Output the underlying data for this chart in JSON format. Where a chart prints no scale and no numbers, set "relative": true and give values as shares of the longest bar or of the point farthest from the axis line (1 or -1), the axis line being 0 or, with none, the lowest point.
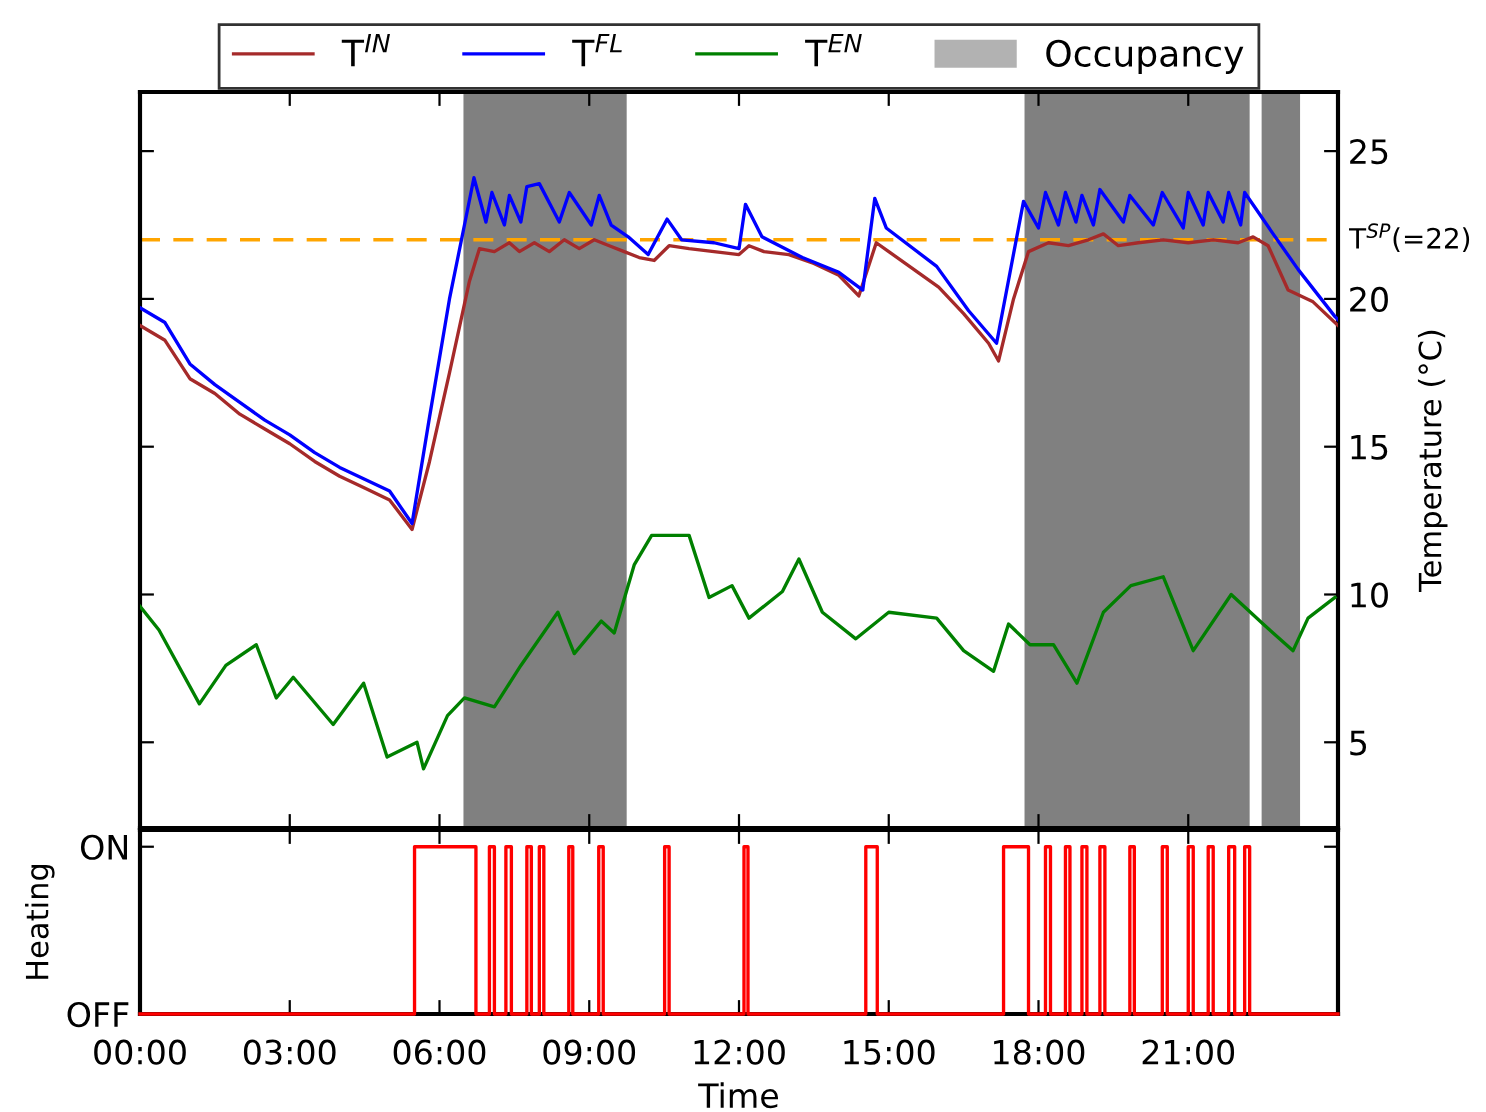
{
  "chart_data": [
    {
      "type": "line",
      "ylabel": "Temperature (°C)",
      "xlim": [
        0,
        24
      ],
      "ylim": [
        2.1,
        27
      ],
      "xticks": [
        {
          "value": 0,
          "label": null
        },
        {
          "value": 3,
          "label": null
        },
        {
          "value": 6,
          "label": null
        },
        {
          "value": 9,
          "label": null
        },
        {
          "value": 12,
          "label": null
        },
        {
          "value": 15,
          "label": null
        },
        {
          "value": 18,
          "label": null
        },
        {
          "value": 21,
          "label": null
        }
      ],
      "yticks": [
        5,
        10,
        15,
        20,
        25
      ],
      "tick_labels": "y",
      "grid": false,
      "legend": "top",
      "marker": "none",
      "line_style": "solid",
      "series": [
        {
          "name": "T$^{IN}$",
          "color": "#a52a2a",
          "x": [
            0,
            0.5,
            1.0,
            1.5,
            2.0,
            2.5,
            3.0,
            3.5,
            4.0,
            4.5,
            5.0,
            5.45,
            5.8,
            6.2,
            6.6,
            6.8,
            7.1,
            7.4,
            7.6,
            7.9,
            8.2,
            8.5,
            8.8,
            9.1,
            9.4,
            9.7,
            10.0,
            10.3,
            10.6,
            11.0,
            11.5,
            12.0,
            12.2,
            12.5,
            13.0,
            13.5,
            14.0,
            14.4,
            14.75,
            15.0,
            15.5,
            16.0,
            16.5,
            17.0,
            17.2,
            17.5,
            17.8,
            18.2,
            18.6,
            19.0,
            19.3,
            19.6,
            20.0,
            20.5,
            21.0,
            21.5,
            22.0,
            22.3,
            22.6,
            23.0,
            23.5,
            24.0
          ],
          "values": [
            19.1,
            18.6,
            17.3,
            16.8,
            16.1,
            15.6,
            15.1,
            14.5,
            14.0,
            13.6,
            13.2,
            12.2,
            14.5,
            17.5,
            20.6,
            21.7,
            21.6,
            21.9,
            21.6,
            21.9,
            21.6,
            22.0,
            21.7,
            22.0,
            21.8,
            21.6,
            21.4,
            21.3,
            21.8,
            21.7,
            21.6,
            21.5,
            21.8,
            21.6,
            21.5,
            21.2,
            20.8,
            20.1,
            21.9,
            21.6,
            21.0,
            20.4,
            19.5,
            18.5,
            17.9,
            20.0,
            21.6,
            21.9,
            21.8,
            22.0,
            22.2,
            21.8,
            21.9,
            22.0,
            21.9,
            22.0,
            21.9,
            22.1,
            21.8,
            20.3,
            19.9,
            19.1
          ]
        },
        {
          "name": "T$^{FL}$",
          "color": "#0000ff",
          "x": [
            0,
            0.5,
            1.0,
            1.5,
            2.0,
            2.5,
            3.0,
            3.5,
            4.0,
            4.5,
            5.0,
            5.45,
            5.8,
            6.2,
            6.5,
            6.69,
            6.93,
            7.05,
            7.3,
            7.4,
            7.63,
            7.75,
            8.0,
            8.4,
            8.6,
            9.04,
            9.2,
            9.44,
            9.78,
            10.18,
            10.56,
            10.85,
            11.5,
            12.0,
            12.13,
            12.46,
            13.27,
            14.0,
            14.48,
            14.72,
            14.95,
            15.96,
            16.6,
            17.16,
            17.7,
            18.0,
            18.14,
            18.4,
            18.54,
            18.75,
            18.87,
            19.1,
            19.23,
            19.7,
            19.83,
            20.3,
            20.48,
            20.9,
            21.0,
            21.3,
            21.4,
            21.7,
            21.81,
            22.05,
            22.13,
            22.7,
            23.2,
            23.94,
            24.0
          ],
          "values": [
            19.7,
            19.2,
            17.8,
            17.1,
            16.5,
            15.9,
            15.4,
            14.8,
            14.3,
            13.9,
            13.5,
            12.4,
            16.0,
            20.0,
            22.5,
            24.1,
            22.6,
            23.6,
            22.5,
            23.5,
            22.6,
            23.8,
            23.9,
            22.6,
            23.6,
            22.5,
            23.5,
            22.5,
            22.1,
            21.5,
            22.7,
            22.0,
            21.9,
            21.7,
            23.2,
            22.1,
            21.4,
            20.9,
            20.3,
            23.4,
            22.4,
            21.1,
            19.6,
            18.5,
            23.3,
            22.4,
            23.6,
            22.5,
            23.6,
            22.6,
            23.5,
            22.5,
            23.7,
            22.6,
            23.5,
            22.5,
            23.6,
            22.4,
            23.6,
            22.5,
            23.6,
            22.6,
            23.6,
            22.5,
            23.6,
            22.2,
            21.0,
            19.4,
            19.3
          ]
        },
        {
          "name": "T$^{EN}$",
          "color": "#008000",
          "x": [
            0,
            0.38,
            1.19,
            1.72,
            2.33,
            2.73,
            3.07,
            3.87,
            4.48,
            4.95,
            5.55,
            5.68,
            6.16,
            6.5,
            7.1,
            7.63,
            8.37,
            8.7,
            9.24,
            9.5,
            9.9,
            10.25,
            11.0,
            11.4,
            11.86,
            12.2,
            12.87,
            13.2,
            13.67,
            14.34,
            15.0,
            15.96,
            16.5,
            17.1,
            17.4,
            17.83,
            18.3,
            18.77,
            19.3,
            19.85,
            20.5,
            21.1,
            21.86,
            22.5,
            23.1,
            23.4,
            23.94
          ],
          "values": [
            9.6,
            8.8,
            6.3,
            7.6,
            8.3,
            6.5,
            7.2,
            5.6,
            7.0,
            4.5,
            5.0,
            4.1,
            5.9,
            6.5,
            6.2,
            7.6,
            9.4,
            8.0,
            9.1,
            8.7,
            11.0,
            12.0,
            12.0,
            9.9,
            10.3,
            9.2,
            10.1,
            11.2,
            9.4,
            8.5,
            9.4,
            9.2,
            8.1,
            7.4,
            9.0,
            8.3,
            8.3,
            7.0,
            9.4,
            10.3,
            10.6,
            8.1,
            10.0,
            9.0,
            8.1,
            9.2,
            9.9
          ]
        }
      ],
      "ref_lines": [
        {
          "axis": "y",
          "value": 22,
          "label": "T$^{SP}$(=22)",
          "color": "#ffa500",
          "line_style": "dashed"
        }
      ],
      "bands": [
        {
          "axis": "x",
          "from": 6.48,
          "to": 9.75,
          "label": "Occupancy",
          "color": "#808080"
        },
        {
          "axis": "x",
          "from": 17.72,
          "to": 22.23,
          "color": "#808080"
        },
        {
          "axis": "x",
          "from": 22.47,
          "to": 23.24,
          "color": "#808080"
        }
      ]
    },
    {
      "type": "step",
      "xlabel": "Time",
      "ylabel": "Heating",
      "xlim": [
        0,
        24
      ],
      "relative": true,
      "annotations": [
        "OFF",
        "ON"
      ],
      "xticks": [
        {
          "value": 0,
          "label": "00:00"
        },
        {
          "value": 3,
          "label": "03:00"
        },
        {
          "value": 6,
          "label": "06:00"
        },
        {
          "value": 9,
          "label": "09:00"
        },
        {
          "value": 12,
          "label": "12:00"
        },
        {
          "value": 15,
          "label": "15:00"
        },
        {
          "value": 18,
          "label": "18:00"
        },
        {
          "value": 21,
          "label": "21:00"
        }
      ],
      "grid": false,
      "marker": "none",
      "line_style": "solid",
      "series": [
        {
          "color": "#ff0000",
          "x": [
            0,
            5.5,
            6.73,
            7.0,
            7.1,
            7.33,
            7.44,
            7.75,
            7.84,
            8.0,
            8.09,
            8.59,
            8.67,
            9.19,
            9.28,
            10.51,
            10.6,
            12.1,
            12.18,
            14.54,
            14.77,
            17.3,
            17.8,
            18.14,
            18.24,
            18.54,
            18.63,
            18.87,
            18.97,
            19.23,
            19.33,
            19.83,
            19.92,
            20.48,
            20.58,
            21.0,
            21.1,
            21.4,
            21.5,
            21.81,
            21.93,
            22.13,
            22.23,
            24.0
          ],
          "values": [
            0,
            1,
            0,
            1,
            0,
            1,
            0,
            1,
            0,
            1,
            0,
            1,
            0,
            1,
            0,
            1,
            0,
            1,
            0,
            1,
            0,
            1,
            0,
            1,
            0,
            1,
            0,
            1,
            0,
            1,
            0,
            1,
            0,
            1,
            0,
            1,
            0,
            1,
            0,
            1,
            0,
            1,
            0,
            0
          ]
        }
      ]
    }
  ]
}
